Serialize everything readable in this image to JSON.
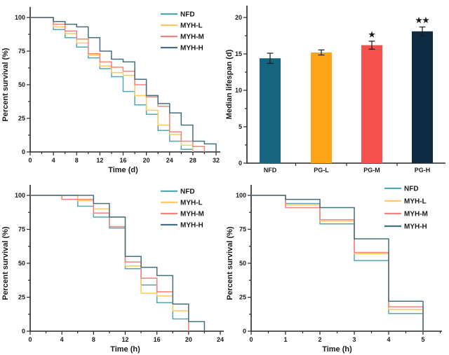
{
  "page": {
    "background": "#ffffff"
  },
  "chart_data": [
    {
      "id": "survival-days",
      "type": "line",
      "subtype": "step-survival",
      "panel": "top-left",
      "xlabel": "Time (d)",
      "ylabel": "Percent survival (%)",
      "xlim": [
        0,
        32
      ],
      "ylim": [
        0,
        100
      ],
      "xticks": [
        0,
        4,
        8,
        12,
        16,
        20,
        24,
        28,
        32
      ],
      "yticks": [
        0,
        25,
        50,
        75,
        100
      ],
      "grid": false,
      "legend_position": "top-right-inside",
      "series": [
        {
          "name": "NFD",
          "color": "#52A7B6",
          "x": [
            0,
            4,
            6,
            8,
            10,
            12,
            14,
            16,
            18,
            20,
            22,
            24,
            26,
            28
          ],
          "y": [
            100,
            91,
            85,
            78,
            70,
            62,
            56,
            45,
            35,
            28,
            16,
            8,
            2,
            0
          ]
        },
        {
          "name": "MYH-L",
          "color": "#FFC95F",
          "x": [
            0,
            4,
            6,
            8,
            10,
            12,
            14,
            16,
            18,
            20,
            22,
            24,
            26,
            28
          ],
          "y": [
            100,
            93,
            88,
            81,
            72,
            64,
            59,
            57,
            42,
            31,
            20,
            13,
            5,
            0
          ]
        },
        {
          "name": "MYH-M",
          "color": "#F7837C",
          "x": [
            0,
            4,
            6,
            8,
            10,
            12,
            14,
            16,
            18,
            20,
            22,
            24,
            26,
            28,
            30
          ],
          "y": [
            100,
            95,
            90,
            84,
            73,
            67,
            63,
            60,
            50,
            41,
            34,
            15,
            8,
            4,
            0
          ]
        },
        {
          "name": "MYH-H",
          "color": "#45707F",
          "x": [
            0,
            4,
            6,
            8,
            10,
            12,
            14,
            16,
            18,
            20,
            22,
            24,
            26,
            28,
            30,
            32
          ],
          "y": [
            100,
            97,
            95,
            93,
            85,
            75,
            69,
            67,
            54,
            42,
            36,
            29,
            20,
            8,
            6,
            0
          ]
        }
      ]
    },
    {
      "id": "median-lifespan",
      "type": "bar",
      "panel": "top-right",
      "title": "",
      "xlabel": "",
      "ylabel": "Median lifespan (d)",
      "categories": [
        "NFD",
        "PG-L",
        "PG-M",
        "PG-H"
      ],
      "values": [
        14.4,
        15.2,
        16.2,
        18.1
      ],
      "errors": [
        0.7,
        0.35,
        0.55,
        0.6
      ],
      "significance": [
        "",
        "",
        "★",
        "★★"
      ],
      "bar_colors": [
        "#156480",
        "#FFA414",
        "#F4514D",
        "#0F2B42"
      ],
      "error_color": "#1a1a1a",
      "ylim": [
        0,
        22
      ],
      "yticks": [
        0,
        5,
        10,
        15,
        20
      ],
      "grid": false
    },
    {
      "id": "survival-hours-1",
      "type": "line",
      "subtype": "step-survival",
      "panel": "bottom-left",
      "xlabel": "Time (h)",
      "ylabel": "Percent survival (%)",
      "xlim": [
        0,
        24
      ],
      "ylim": [
        0,
        100
      ],
      "xticks": [
        0,
        4,
        8,
        12,
        16,
        20,
        24
      ],
      "yticks": [
        0,
        25,
        50,
        75,
        100
      ],
      "grid": false,
      "legend_position": "top-right-inside",
      "series": [
        {
          "name": "NFD",
          "color": "#52A7B6",
          "x": [
            0,
            6,
            8,
            10,
            12,
            14,
            16,
            18,
            20
          ],
          "y": [
            100,
            92,
            84,
            76,
            46,
            34,
            21,
            9,
            0
          ]
        },
        {
          "name": "MYH-L",
          "color": "#FFC95F",
          "x": [
            0,
            6,
            8,
            10,
            12,
            14,
            16,
            18,
            20
          ],
          "y": [
            100,
            96,
            90,
            84,
            48,
            28,
            26,
            15,
            0
          ]
        },
        {
          "name": "MYH-M",
          "color": "#F7837C",
          "x": [
            0,
            4,
            8,
            10,
            12,
            14,
            16,
            18,
            20
          ],
          "y": [
            100,
            97,
            87,
            77,
            51,
            39,
            29,
            20,
            0
          ]
        },
        {
          "name": "MYH-H",
          "color": "#45707F",
          "x": [
            0,
            8,
            10,
            12,
            14,
            16,
            18,
            20,
            22
          ],
          "y": [
            100,
            94,
            84,
            55,
            47,
            41,
            20,
            7,
            0
          ]
        }
      ]
    },
    {
      "id": "survival-hours-2",
      "type": "line",
      "subtype": "step-survival",
      "panel": "bottom-right",
      "xlabel": "Time (h)",
      "ylabel": "Percent survival (%)",
      "xlim": [
        0,
        5
      ],
      "ylim": [
        0,
        100
      ],
      "xticks": [
        0,
        1,
        2,
        3,
        4,
        5
      ],
      "yticks": [
        0,
        25,
        50,
        75,
        100
      ],
      "grid": false,
      "legend_position": "top-right-inside",
      "series": [
        {
          "name": "NFD",
          "color": "#52A7B6",
          "x": [
            0,
            1,
            2,
            3,
            4,
            5
          ],
          "y": [
            100,
            94,
            79,
            52,
            13,
            0
          ]
        },
        {
          "name": "MYH-L",
          "color": "#FFC95F",
          "x": [
            0,
            1,
            2,
            3,
            4,
            5
          ],
          "y": [
            100,
            93,
            81,
            57,
            16,
            0
          ]
        },
        {
          "name": "MYH-M",
          "color": "#F7837C",
          "x": [
            0,
            1,
            2,
            3,
            4,
            5
          ],
          "y": [
            100,
            91,
            82,
            58,
            18,
            0
          ]
        },
        {
          "name": "MYH-H",
          "color": "#45707F",
          "x": [
            0,
            1,
            2,
            3,
            4,
            5
          ],
          "y": [
            100,
            97,
            91,
            68,
            22,
            0
          ]
        }
      ]
    }
  ]
}
